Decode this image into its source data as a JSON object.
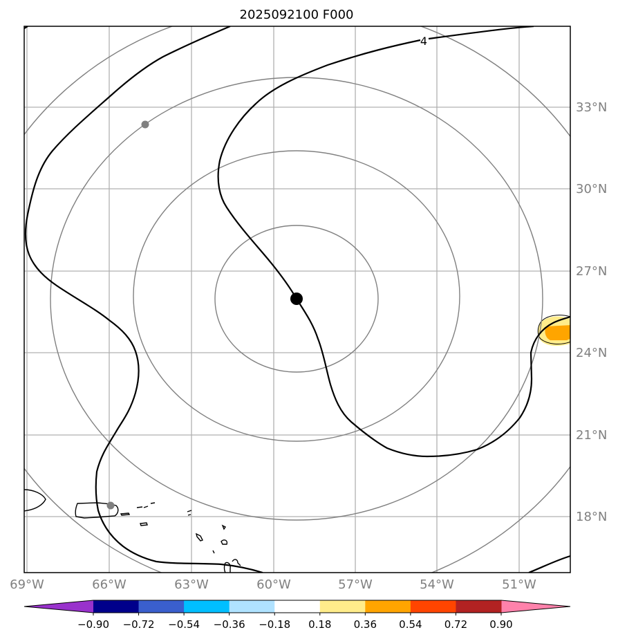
{
  "title": "2025092100 F000",
  "contour_label": "4",
  "longitude_labels": [
    "69°W",
    "66°W",
    "63°W",
    "60°W",
    "57°W",
    "54°W",
    "51°W"
  ],
  "latitude_labels": [
    "33°N",
    "30°N",
    "27°N",
    "24°N",
    "21°N",
    "18°N"
  ],
  "colorbar": {
    "tick_labels": [
      "−0.90",
      "−0.72",
      "−0.54",
      "−0.36",
      "−0.18",
      "0.18",
      "0.36",
      "0.54",
      "0.72",
      "0.90"
    ],
    "colors": [
      "#9932cc",
      "#00008b",
      "#3a5fcd",
      "#00bfff",
      "#b0e2ff",
      "#ffffff",
      "#ffec8b",
      "#ffa500",
      "#ff4500",
      "#b22222",
      "#ff82ab"
    ]
  },
  "colors": {
    "range_rings": "#808080",
    "gridlines": "#b0b0b0",
    "storm_center": "#000000",
    "station_marker": "#808080"
  }
}
